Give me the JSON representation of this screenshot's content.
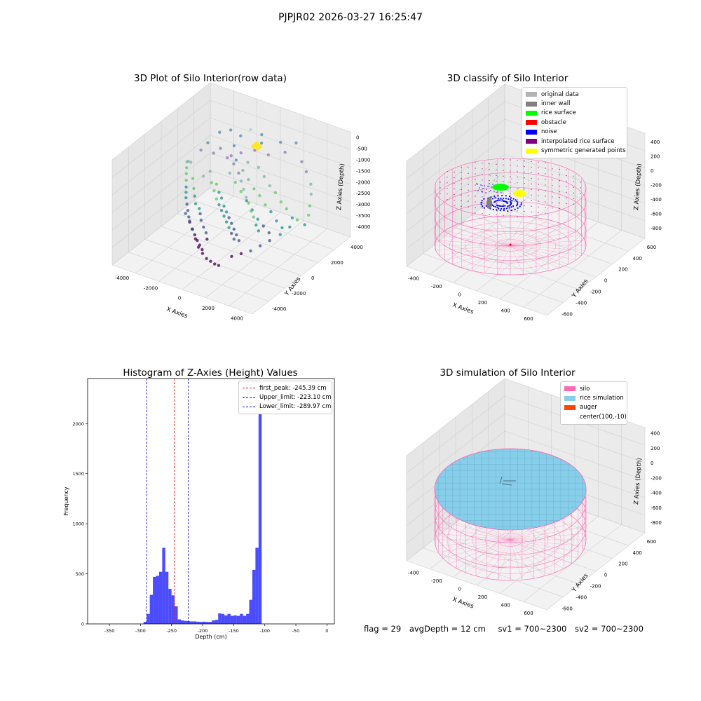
{
  "suptitle": "PJPJR02 2026-03-27 16:25:47",
  "colors": {
    "original": "#b3b3b3",
    "inner_wall": "#808080",
    "rice_surface": "#00ff00",
    "obstacle": "#ff0000",
    "noise": "#0000ff",
    "interp_surface": "#800080",
    "symmetric": "#ffff00",
    "silo": "#ff69b4",
    "rice_sim": "#87ceeb",
    "auger": "#ff4500",
    "hist_bar": "#0000ff"
  },
  "footer": {
    "flag": "flag = 29",
    "avg": "avgDepth = 12 cm",
    "sv1": "sv1 = 700~2300",
    "sv2": "sv2 = 700~2300"
  },
  "chart_data": [
    {
      "type": "scatter",
      "projection": "3d",
      "title": "3D Plot of Silo Interior(row data)",
      "xlabel": "X Axies",
      "ylabel": "Y Axies",
      "zlabel": "Z Axies (Depth)",
      "xticks": [
        "-4000",
        "-2000",
        "0",
        "2000",
        "4000"
      ],
      "yticks": [
        "-4000",
        "-2000",
        "0",
        "2000",
        "4000"
      ],
      "zticks": [
        "0",
        "-500",
        "-1000",
        "-1500",
        "-2000",
        "-2500",
        "-3000",
        "-3500",
        "-4000"
      ],
      "points": [
        [
          -3900,
          1500,
          -1900
        ],
        [
          -3850,
          1400,
          -2100
        ],
        [
          -3800,
          1300,
          -2300
        ],
        [
          -3700,
          1150,
          -2500
        ],
        [
          -3600,
          1000,
          -2700
        ],
        [
          -3500,
          850,
          -2850
        ],
        [
          -3400,
          700,
          -3000
        ],
        [
          -3200,
          500,
          -3150
        ],
        [
          -3000,
          300,
          -3300
        ],
        [
          -2800,
          100,
          -3450
        ],
        [
          -2600,
          -100,
          -3550
        ],
        [
          -2300,
          -300,
          -3700
        ],
        [
          -2000,
          -500,
          -3800
        ],
        [
          -1700,
          -700,
          -3900
        ],
        [
          -1400,
          -900,
          -3950
        ],
        [
          -1100,
          -1100,
          -4000
        ],
        [
          -3600,
          1200,
          -1700
        ],
        [
          -3300,
          1000,
          -1600
        ],
        [
          -3100,
          900,
          -2200
        ],
        [
          -2900,
          700,
          -2500
        ],
        [
          -2700,
          500,
          -2700
        ],
        [
          -2500,
          300,
          -2900
        ],
        [
          -2200,
          200,
          -3000
        ],
        [
          -2000,
          0,
          -3100
        ],
        [
          -1800,
          -200,
          -3250
        ],
        [
          -1500,
          -400,
          -3400
        ],
        [
          -1200,
          -600,
          -3500
        ],
        [
          -1000,
          -800,
          -3650
        ],
        [
          -3000,
          1500,
          -1200
        ],
        [
          -2700,
          1700,
          -900
        ],
        [
          -2400,
          1800,
          -1300
        ],
        [
          -2100,
          2000,
          -1100
        ],
        [
          -1800,
          2200,
          -1500
        ],
        [
          -1500,
          2400,
          -1000
        ],
        [
          -1200,
          2600,
          -1300
        ],
        [
          -900,
          2800,
          -1700
        ],
        [
          -600,
          3000,
          -1200
        ],
        [
          -300,
          3200,
          -900
        ],
        [
          0,
          3400,
          -1400
        ],
        [
          -2500,
          2500,
          -700
        ],
        [
          -2000,
          2800,
          -600
        ],
        [
          -1500,
          3000,
          -800
        ],
        [
          -1000,
          3200,
          -500
        ],
        [
          -500,
          3500,
          -700
        ],
        [
          500,
          3800,
          -900
        ],
        [
          1000,
          3500,
          -1100
        ],
        [
          1500,
          3800,
          -700
        ],
        [
          2000,
          3600,
          -1300
        ],
        [
          2500,
          3300,
          -1500
        ],
        [
          3000,
          3000,
          -1800
        ],
        [
          3300,
          2600,
          -2000
        ],
        [
          3500,
          2200,
          -2300
        ],
        [
          3700,
          1800,
          -2500
        ],
        [
          3800,
          1300,
          -2700
        ],
        [
          3600,
          900,
          -2400
        ],
        [
          3400,
          500,
          -2600
        ],
        [
          3000,
          200,
          -2900
        ],
        [
          2600,
          -200,
          -3100
        ],
        [
          2200,
          -500,
          -3300
        ],
        [
          1800,
          -800,
          -3500
        ],
        [
          1400,
          -1100,
          -3600
        ],
        [
          1000,
          -1400,
          -3700
        ],
        [
          -2500,
          1000,
          -2000
        ],
        [
          -2200,
          1200,
          -1800
        ],
        [
          -1900,
          900,
          -2100
        ],
        [
          -1600,
          700,
          -2300
        ],
        [
          -1300,
          500,
          -2500
        ],
        [
          -1000,
          300,
          -2600
        ],
        [
          -700,
          100,
          -2700
        ],
        [
          -400,
          -100,
          -2800
        ],
        [
          -100,
          -300,
          -2900
        ],
        [
          200,
          -500,
          -3000
        ],
        [
          500,
          -700,
          -3100
        ],
        [
          800,
          -900,
          -3200
        ],
        [
          -2000,
          1500,
          -2400
        ],
        [
          -1700,
          1300,
          -2600
        ],
        [
          -1400,
          1100,
          -2700
        ],
        [
          -1100,
          900,
          -2900
        ],
        [
          -800,
          700,
          -3000
        ],
        [
          -500,
          500,
          -3100
        ],
        [
          -200,
          300,
          -3200
        ],
        [
          100,
          100,
          -3300
        ],
        [
          400,
          -100,
          -3400
        ],
        [
          700,
          -300,
          -3500
        ],
        [
          -1500,
          2000,
          -2000
        ],
        [
          -1000,
          1800,
          -2200
        ],
        [
          -500,
          1600,
          -2400
        ],
        [
          0,
          1400,
          -2600
        ],
        [
          500,
          1200,
          -2800
        ],
        [
          1000,
          1000,
          -3000
        ],
        [
          1500,
          800,
          -3100
        ],
        [
          2000,
          600,
          -3200
        ],
        [
          -800,
          2200,
          -1800
        ],
        [
          -300,
          2000,
          -2000
        ],
        [
          200,
          1800,
          -2200
        ],
        [
          700,
          1600,
          -2300
        ],
        [
          1200,
          1400,
          -2500
        ],
        [
          1700,
          1200,
          -2600
        ],
        [
          2200,
          1000,
          -2800
        ],
        [
          2700,
          800,
          -2900
        ],
        [
          0,
          2500,
          -1600
        ],
        [
          500,
          2300,
          -1800
        ],
        [
          1000,
          2100,
          -2000
        ],
        [
          1500,
          1900,
          -2100
        ],
        [
          2000,
          1700,
          -2300
        ],
        [
          2500,
          1500,
          -2400
        ],
        [
          3000,
          1300,
          -2600
        ],
        [
          -2800,
          -200,
          -3200
        ],
        [
          -2400,
          -400,
          -3350
        ],
        [
          -2000,
          -700,
          -3500
        ],
        [
          -1600,
          -1000,
          -3700
        ],
        [
          -1200,
          -1300,
          -3850
        ],
        [
          -800,
          -1500,
          -3950
        ],
        [
          -400,
          -1700,
          -4000
        ],
        [
          0,
          -1900,
          -3950
        ],
        [
          400,
          -2100,
          -3900
        ],
        [
          800,
          -2300,
          -3800
        ],
        [
          -1200,
          1700,
          -1100
        ],
        [
          -900,
          1500,
          -1300
        ],
        [
          -600,
          1300,
          -1000
        ],
        [
          -300,
          1100,
          -1400
        ],
        [
          0,
          900,
          -1600
        ],
        [
          300,
          700,
          -1800
        ],
        [
          600,
          500,
          -2000
        ],
        [
          900,
          300,
          -2100
        ],
        [
          1200,
          100,
          -2300
        ],
        [
          1500,
          -100,
          -2400
        ],
        [
          1800,
          -300,
          -2600
        ],
        [
          2100,
          -500,
          -2700
        ]
      ],
      "highlight_points": [
        [
          -200,
          2400,
          -700
        ],
        [
          -150,
          2450,
          -650
        ],
        [
          -100,
          2500,
          -720
        ],
        [
          -50,
          2420,
          -680
        ],
        [
          0,
          2480,
          -700
        ],
        [
          50,
          2440,
          -660
        ],
        [
          100,
          2460,
          -690
        ],
        [
          -250,
          2380,
          -740
        ],
        [
          -120,
          2520,
          -640
        ],
        [
          30,
          2390,
          -760
        ],
        [
          -80,
          2560,
          -710
        ]
      ]
    },
    {
      "type": "scatter",
      "projection": "3d",
      "title": "3D classify of Silo Interior",
      "xlabel": "X Axies",
      "ylabel": "Y Axies",
      "zlabel": "Z Axies (Depth)",
      "xticks": [
        "-400",
        "-200",
        "0",
        "200",
        "400",
        "600"
      ],
      "yticks": [
        "-600",
        "-400",
        "-200",
        "0",
        "200",
        "400",
        "600"
      ],
      "zticks": [
        "400",
        "200",
        "0",
        "-200",
        "-400",
        "-600",
        "-800"
      ],
      "cylinder": {
        "center": [
          100,
          -10
        ],
        "radius": 500,
        "z_top": -100,
        "z_bottom": -900
      },
      "legend": [
        {
          "label": "original data",
          "color_key": "original"
        },
        {
          "label": "inner wall",
          "color_key": "inner_wall"
        },
        {
          "label": "rice surface",
          "color_key": "rice_surface"
        },
        {
          "label": "obstacle",
          "color_key": "obstacle"
        },
        {
          "label": "noise",
          "color_key": "noise"
        },
        {
          "label": "interpolated rice surface",
          "color_key": "interp_surface"
        },
        {
          "label": "symmetric generated points",
          "color_key": "symmetric"
        }
      ]
    },
    {
      "type": "bar",
      "title": "Histogram of Z-Axies (Height) Values",
      "xlabel": "Depth (cm)",
      "ylabel": "Frequency",
      "xlim": [
        -385,
        12
      ],
      "ylim": [
        0,
        2450
      ],
      "xticks": [
        -350,
        -300,
        -250,
        -200,
        -150,
        -100,
        -50,
        0
      ],
      "yticks": [
        0,
        500,
        1000,
        1500,
        2000
      ],
      "bin_width": 5,
      "bin_start": -295,
      "counts": [
        20,
        100,
        290,
        470,
        480,
        520,
        760,
        520,
        350,
        285,
        175,
        45,
        35,
        30,
        28,
        25,
        25,
        22,
        20,
        22,
        20,
        20,
        35,
        40,
        105,
        100,
        85,
        100,
        80,
        85,
        80,
        100,
        80,
        100,
        240,
        540,
        760,
        2320
      ],
      "lines": [
        {
          "x": -245.39,
          "label": "first_peak: -245.39 cm",
          "color": "#ff0000"
        },
        {
          "x": -223.1,
          "label": "Upper_limit: -223.10 cm",
          "color": "#0000ff"
        },
        {
          "x": -289.97,
          "label": "Lower_limit: -289.97 cm",
          "color": "#0000ff"
        }
      ]
    },
    {
      "type": "surface",
      "projection": "3d",
      "title": "3D simulation of Silo Interior",
      "xlabel": "X Axies",
      "ylabel": "Y Axies",
      "zlabel": "Z Axies (Depth)",
      "xticks": [
        "-400",
        "-200",
        "0",
        "200",
        "400",
        "600"
      ],
      "yticks": [
        "-600",
        "-400",
        "-200",
        "0",
        "200",
        "400",
        "600"
      ],
      "zticks": [
        "400",
        "200",
        "0",
        "-200",
        "-400",
        "-600",
        "-800"
      ],
      "legend": [
        {
          "label": "silo",
          "color_key": "silo"
        },
        {
          "label": "rice simulation",
          "color_key": "rice_sim"
        },
        {
          "label": "auger",
          "color_key": "auger"
        },
        {
          "label": "center(100,-10)",
          "color_key": ""
        }
      ]
    }
  ]
}
